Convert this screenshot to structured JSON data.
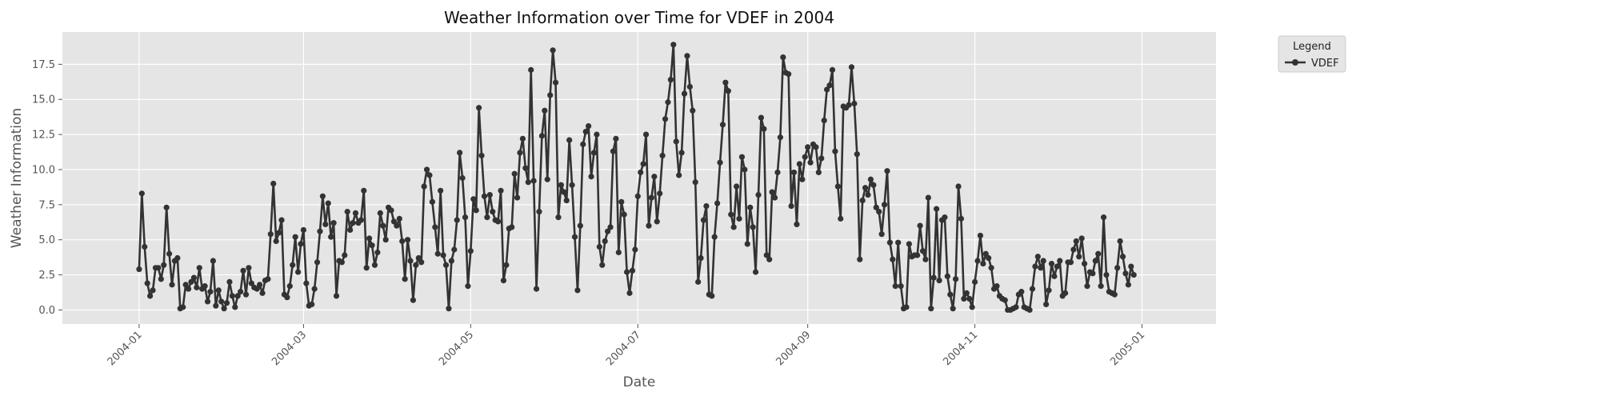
{
  "chart_data": {
    "type": "line",
    "title": "Weather Information over Time for VDEF in 2004",
    "xlabel": "Date",
    "ylabel": "Weather Information",
    "x_ticks": [
      "2004-01",
      "2004-03",
      "2004-05",
      "2004-07",
      "2004-09",
      "2004-11",
      "2005-01"
    ],
    "y_ticks": [
      "0.0",
      "2.5",
      "5.0",
      "7.5",
      "10.0",
      "12.5",
      "15.0",
      "17.5"
    ],
    "ylim": [
      -1,
      19.8
    ],
    "xlim": [
      "2003-12-04",
      "2005-01-28"
    ],
    "grid": true,
    "legend": {
      "title": "Legend",
      "placement": "outside-top-right"
    },
    "series": [
      {
        "name": "VDEF",
        "color": "#333333",
        "x_start": "2004-01-01",
        "x_step_days": 1,
        "values": [
          2.9,
          8.3,
          4.5,
          1.9,
          1.0,
          1.4,
          3.0,
          3.0,
          2.2,
          3.2,
          7.3,
          4.0,
          1.8,
          3.5,
          3.7,
          0.1,
          0.2,
          1.8,
          1.5,
          2.0,
          2.3,
          1.6,
          3.0,
          1.5,
          1.7,
          0.6,
          1.3,
          3.5,
          0.3,
          1.4,
          0.6,
          0.1,
          0.5,
          2.0,
          1.0,
          0.2,
          1.0,
          1.3,
          2.8,
          1.1,
          3.0,
          1.9,
          1.6,
          1.5,
          1.8,
          1.2,
          2.1,
          2.2,
          5.4,
          9.0,
          4.9,
          5.5,
          6.4,
          1.1,
          0.9,
          1.7,
          3.2,
          5.2,
          2.7,
          4.7,
          5.7,
          1.9,
          0.3,
          0.4,
          1.5,
          3.4,
          5.6,
          8.1,
          6.1,
          7.6,
          5.2,
          6.2,
          1.0,
          3.5,
          3.4,
          3.9,
          7.0,
          5.7,
          6.2,
          6.9,
          6.2,
          6.4,
          8.5,
          3.0,
          5.1,
          4.6,
          3.2,
          4.1,
          6.9,
          6.0,
          5.0,
          7.3,
          7.1,
          6.3,
          6.0,
          6.5,
          4.9,
          2.2,
          5.0,
          3.5,
          0.7,
          3.2,
          3.7,
          3.4,
          8.8,
          10.0,
          9.6,
          7.7,
          5.9,
          4.0,
          8.5,
          3.9,
          3.2,
          0.1,
          3.5,
          4.3,
          6.4,
          11.2,
          9.4,
          6.6,
          1.7,
          4.2,
          7.9,
          7.1,
          14.4,
          11.0,
          8.1,
          6.6,
          8.2,
          7.0,
          6.4,
          6.3,
          8.5,
          2.1,
          3.2,
          5.8,
          5.9,
          9.7,
          8.0,
          11.2,
          12.2,
          10.1,
          9.1,
          17.1,
          9.2,
          1.5,
          7.0,
          12.4,
          14.2,
          9.3,
          15.3,
          18.5,
          16.2,
          6.6,
          8.9,
          8.4,
          7.8,
          12.1,
          8.9,
          5.2,
          1.4,
          6.0,
          11.8,
          12.7,
          13.1,
          9.5,
          11.2,
          12.5,
          4.5,
          3.2,
          4.9,
          5.6,
          5.9,
          11.3,
          12.2,
          4.1,
          7.7,
          6.8,
          2.7,
          1.2,
          2.8,
          4.3,
          8.1,
          9.8,
          10.4,
          12.5,
          6.0,
          8.0,
          9.5,
          6.3,
          8.3,
          11.0,
          13.6,
          14.8,
          16.4,
          18.9,
          12.0,
          9.6,
          11.2,
          15.4,
          18.1,
          15.9,
          14.2,
          9.1,
          2.0,
          3.7,
          6.4,
          7.4,
          1.1,
          1.0,
          5.2,
          7.6,
          10.5,
          13.2,
          16.2,
          15.6,
          6.8,
          5.9,
          8.8,
          6.5,
          10.9,
          10.0,
          4.7,
          7.3,
          5.9,
          2.7,
          8.2,
          13.7,
          12.9,
          3.9,
          3.6,
          8.4,
          8.0,
          9.8,
          12.3,
          18.0,
          16.9,
          16.8,
          7.4,
          9.8,
          6.1,
          10.4,
          9.3,
          10.9,
          11.6,
          10.5,
          11.8,
          11.6,
          9.8,
          10.8,
          13.5,
          15.7,
          16.0,
          17.1,
          11.3,
          8.8,
          6.5,
          14.5,
          14.4,
          14.6,
          17.3,
          14.7,
          11.1,
          3.6,
          7.8,
          8.7,
          8.2,
          9.3,
          8.9,
          7.3,
          7.0,
          5.4,
          7.5,
          9.9,
          4.8,
          3.6,
          1.7,
          4.8,
          1.7,
          0.1,
          0.2,
          4.7,
          3.8,
          3.9,
          3.9,
          6.0,
          4.2,
          3.6,
          8.0,
          0.1,
          2.3,
          7.2,
          2.1,
          6.4,
          6.6,
          2.4,
          1.1,
          0.1,
          2.2,
          8.8,
          6.5,
          0.8,
          1.2,
          0.8,
          0.2,
          2.0,
          3.5,
          5.3,
          3.3,
          4.0,
          3.7,
          3.0,
          1.5,
          1.7,
          1.0,
          0.8,
          0.7,
          0.0,
          0.0,
          0.1,
          0.2,
          1.1,
          1.3,
          0.2,
          0.1,
          0.0,
          1.5,
          3.1,
          3.8,
          3.0,
          3.5,
          0.4,
          1.4,
          3.3,
          2.4,
          3.1,
          3.5,
          1.0,
          1.2,
          3.4,
          3.4,
          4.3,
          4.9,
          3.8,
          5.1,
          3.3,
          1.7,
          2.7,
          2.6,
          3.5,
          4.0,
          1.7,
          6.6,
          2.5,
          1.3,
          1.2,
          1.1,
          3.0,
          4.9,
          3.8,
          2.6,
          1.8,
          3.1,
          2.5
        ]
      }
    ]
  }
}
